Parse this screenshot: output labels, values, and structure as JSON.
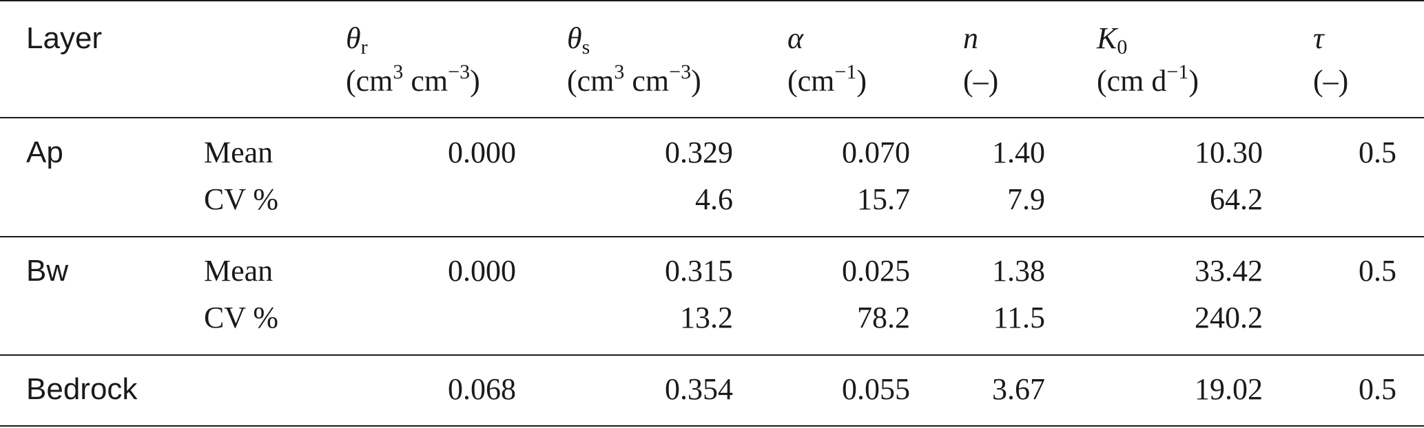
{
  "table": {
    "header": {
      "layer": "Layer",
      "theta_r": {
        "symbol": "θ",
        "sub": "r",
        "unit_pre": "(cm",
        "unit_sup1": "3",
        "unit_mid": " cm",
        "unit_sup2": "−3",
        "unit_post": ")"
      },
      "theta_s": {
        "symbol": "θ",
        "sub": "s",
        "unit_pre": "(cm",
        "unit_sup1": "3",
        "unit_mid": " cm",
        "unit_sup2": "−3",
        "unit_post": ")"
      },
      "alpha": {
        "symbol": "α",
        "unit_pre": "(cm",
        "unit_sup": "−1",
        "unit_post": ")"
      },
      "n": {
        "symbol": "n",
        "unit": "(–)"
      },
      "K0": {
        "symbol": "K",
        "sub": "0",
        "unit_pre": "(cm d",
        "unit_sup": "−1",
        "unit_post": ")"
      },
      "tau": {
        "symbol": "τ",
        "unit": "(–)"
      }
    },
    "rows": [
      {
        "layer": "Ap",
        "mean_label": "Mean",
        "cv_label": "CV %",
        "theta_r": "0.000",
        "theta_s": "0.329",
        "alpha": "0.070",
        "n": "1.40",
        "K0": "10.30",
        "tau": "0.5",
        "cv_theta_s": "4.6",
        "cv_alpha": "15.7",
        "cv_n": "7.9",
        "cv_K0": "64.2"
      },
      {
        "layer": "Bw",
        "mean_label": "Mean",
        "cv_label": "CV %",
        "theta_r": "0.000",
        "theta_s": "0.315",
        "alpha": "0.025",
        "n": "1.38",
        "K0": "33.42",
        "tau": "0.5",
        "cv_theta_s": "13.2",
        "cv_alpha": "78.2",
        "cv_n": "11.5",
        "cv_K0": "240.2"
      },
      {
        "layer": "Bedrock",
        "theta_r": "0.068",
        "theta_s": "0.354",
        "alpha": "0.055",
        "n": "3.67",
        "K0": "19.02",
        "tau": "0.5"
      }
    ]
  }
}
